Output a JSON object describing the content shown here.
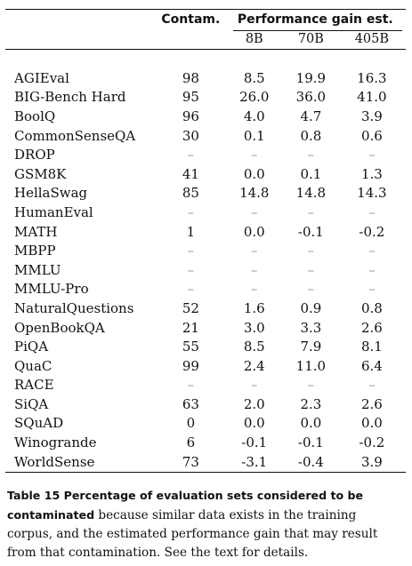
{
  "table": {
    "header": {
      "contam": "Contam.",
      "gain": "Performance gain est.",
      "sizes": [
        "8B",
        "70B",
        "405B"
      ]
    },
    "rows": [
      {
        "name": "AGIEval",
        "contam": "98",
        "g8": "8.5",
        "g70": "19.9",
        "g405": "16.3"
      },
      {
        "name": "BIG-Bench Hard",
        "contam": "95",
        "g8": "26.0",
        "g70": "36.0",
        "g405": "41.0"
      },
      {
        "name": "BoolQ",
        "contam": "96",
        "g8": "4.0",
        "g70": "4.7",
        "g405": "3.9"
      },
      {
        "name": "CommonSenseQA",
        "contam": "30",
        "g8": "0.1",
        "g70": "0.8",
        "g405": "0.6"
      },
      {
        "name": "DROP",
        "contam": "–",
        "g8": "–",
        "g70": "–",
        "g405": "–"
      },
      {
        "name": "GSM8K",
        "contam": "41",
        "g8": "0.0",
        "g70": "0.1",
        "g405": "1.3"
      },
      {
        "name": "HellaSwag",
        "contam": "85",
        "g8": "14.8",
        "g70": "14.8",
        "g405": "14.3"
      },
      {
        "name": "HumanEval",
        "contam": "–",
        "g8": "–",
        "g70": "–",
        "g405": "–"
      },
      {
        "name": "MATH",
        "contam": "1",
        "g8": "0.0",
        "g70": "-0.1",
        "g405": "-0.2"
      },
      {
        "name": "MBPP",
        "contam": "–",
        "g8": "–",
        "g70": "–",
        "g405": "–"
      },
      {
        "name": "MMLU",
        "contam": "–",
        "g8": "–",
        "g70": "–",
        "g405": "–"
      },
      {
        "name": "MMLU-Pro",
        "contam": "–",
        "g8": "–",
        "g70": "–",
        "g405": "–"
      },
      {
        "name": "NaturalQuestions",
        "contam": "52",
        "g8": "1.6",
        "g70": "0.9",
        "g405": "0.8"
      },
      {
        "name": "OpenBookQA",
        "contam": "21",
        "g8": "3.0",
        "g70": "3.3",
        "g405": "2.6"
      },
      {
        "name": "PiQA",
        "contam": "55",
        "g8": "8.5",
        "g70": "7.9",
        "g405": "8.1"
      },
      {
        "name": "QuaC",
        "contam": "99",
        "g8": "2.4",
        "g70": "11.0",
        "g405": "6.4"
      },
      {
        "name": "RACE",
        "contam": "–",
        "g8": "–",
        "g70": "–",
        "g405": "–"
      },
      {
        "name": "SiQA",
        "contam": "63",
        "g8": "2.0",
        "g70": "2.3",
        "g405": "2.6"
      },
      {
        "name": "SQuAD",
        "contam": "0",
        "g8": "0.0",
        "g70": "0.0",
        "g405": "0.0"
      },
      {
        "name": "Winogrande",
        "contam": "6",
        "g8": "-0.1",
        "g70": "-0.1",
        "g405": "-0.2"
      },
      {
        "name": "WorldSense",
        "contam": "73",
        "g8": "-3.1",
        "g70": "-0.4",
        "g405": "3.9"
      }
    ]
  },
  "caption": {
    "lead": "Table 15 Percentage of evaluation sets considered to be contaminated",
    "text": " because similar data exists in the training corpus, and the estimated performance gain that may result from that contamination. See the text for details."
  }
}
